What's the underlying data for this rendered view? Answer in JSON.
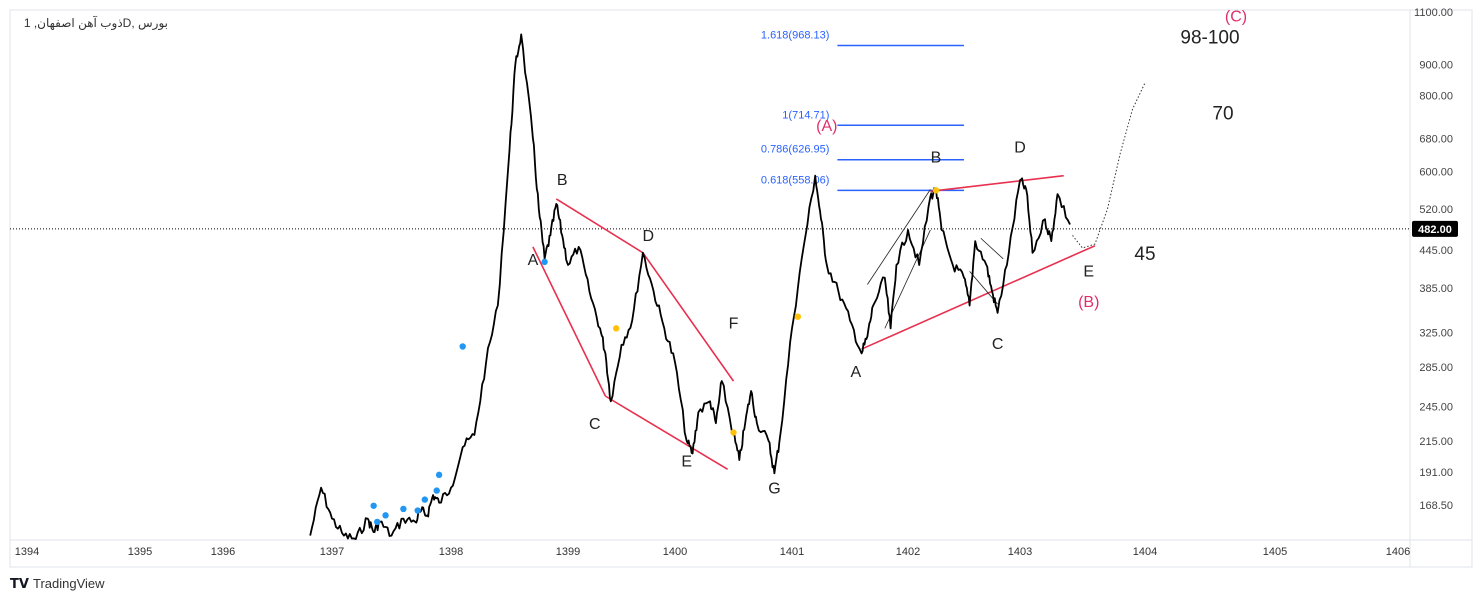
{
  "header": {
    "title": "ذوب آهن اصفهان, 1D, بورس"
  },
  "footer": {
    "logo_text": "TradingView"
  },
  "colors": {
    "price": "#000000",
    "fib": "#2962ff",
    "channel": "#e8314f",
    "pink": "#e0306a",
    "marker_blue": "#2196f3",
    "marker_yellow": "#ffc107"
  },
  "chart_data": {
    "type": "line",
    "title": "ذوب آهن اصفهان, 1D, بورس",
    "y_scale": "log",
    "xlabel": "",
    "ylabel": "",
    "ylim": [
      140,
      1100
    ],
    "x_ticks": [
      "1394",
      "1395",
      "1396",
      "1397",
      "1398",
      "1399",
      "1400",
      "1401",
      "1402",
      "1403",
      "1404",
      "1405",
      "1406"
    ],
    "y_ticks": [
      "1100.00",
      "900.00",
      "800.00",
      "680.00",
      "600.00",
      "520.00",
      "445.00",
      "385.00",
      "325.00",
      "285.00",
      "245.00",
      "215.00",
      "191.00",
      "168.50"
    ],
    "current_price": "482.00",
    "current_value": 482,
    "grid": false,
    "series": [
      {
        "x": [
          1396.8,
          1396.9,
          1397.0,
          1397.1,
          1397.2,
          1397.3,
          1397.35,
          1397.4,
          1397.5,
          1397.6,
          1397.7,
          1397.75,
          1397.8,
          1397.85,
          1397.9,
          1398.0,
          1398.1,
          1398.2,
          1398.3,
          1398.4,
          1398.5,
          1398.55,
          1398.6,
          1398.7,
          1398.75,
          1398.8,
          1398.85,
          1398.9,
          1398.95,
          1399.0,
          1399.1,
          1399.2,
          1399.3,
          1399.35,
          1399.4,
          1399.5,
          1399.6,
          1399.7,
          1399.8,
          1399.9,
          1400.0,
          1400.1,
          1400.15,
          1400.2,
          1400.3,
          1400.35,
          1400.4,
          1400.5,
          1400.55,
          1400.6,
          1400.65,
          1400.7,
          1400.8,
          1400.85,
          1400.9,
          1401.0,
          1401.1,
          1401.2,
          1401.25,
          1401.3,
          1401.4,
          1401.5,
          1401.6,
          1401.65,
          1401.7,
          1401.8,
          1401.85,
          1401.9,
          1402.0,
          1402.1,
          1402.2,
          1402.25,
          1402.3,
          1402.4,
          1402.5,
          1402.55,
          1402.6,
          1402.7,
          1402.75,
          1402.8,
          1402.9,
          1403.0,
          1403.05,
          1403.1,
          1403.2,
          1403.25,
          1403.3,
          1403.4
        ],
        "y": [
          150,
          180,
          160,
          150,
          148,
          160,
          152,
          158,
          150,
          160,
          158,
          165,
          162,
          175,
          170,
          180,
          210,
          220,
          290,
          360,
          650,
          900,
          1010,
          680,
          520,
          430,
          470,
          530,
          470,
          420,
          450,
          380,
          330,
          300,
          250,
          310,
          340,
          440,
          380,
          330,
          290,
          215,
          205,
          240,
          250,
          230,
          270,
          220,
          200,
          230,
          260,
          230,
          215,
          190,
          220,
          330,
          450,
          590,
          500,
          420,
          380,
          340,
          300,
          320,
          360,
          400,
          330,
          420,
          480,
          420,
          545,
          560,
          480,
          420,
          400,
          360,
          460,
          420,
          380,
          350,
          440,
          580,
          560,
          440,
          500,
          460,
          550,
          490
        ]
      }
    ],
    "projection": {
      "x": [
        1403.42,
        1403.5,
        1403.6,
        1403.7,
        1403.8,
        1403.9,
        1404.0
      ],
      "y": [
        470,
        448,
        455,
        520,
        640,
        760,
        840
      ]
    },
    "fib_levels": [
      {
        "label": "1.618(968.13)",
        "value": 968.13,
        "x": [
          1401.15,
          1402.25
        ]
      },
      {
        "label": "1(714.71)",
        "value": 714.71,
        "x": [
          1401.15,
          1402.25
        ]
      },
      {
        "label": "0.786(626.95)",
        "value": 626.95,
        "x": [
          1401.15,
          1402.25
        ]
      },
      {
        "label": "0.618(558.06)",
        "value": 558.06,
        "x": [
          1401.15,
          1402.25
        ]
      }
    ],
    "channel_lines": [
      {
        "x": [
          1398.7,
          1399.35
        ],
        "y": [
          450,
          255
        ]
      },
      {
        "x": [
          1398.9,
          1399.7
        ],
        "y": [
          540,
          440
        ]
      },
      {
        "x": [
          1399.7,
          1400.5
        ],
        "y": [
          440,
          270
        ]
      },
      {
        "x": [
          1399.35,
          1400.45
        ],
        "y": [
          255,
          193
        ]
      },
      {
        "x": [
          1401.6,
          1403.6
        ],
        "y": [
          305,
          452
        ]
      },
      {
        "x": [
          1402.2,
          1403.35
        ],
        "y": [
          556,
          590
        ]
      }
    ],
    "thin_lines": [
      {
        "x": [
          1401.65,
          1402.2
        ],
        "y": [
          390,
          560
        ]
      },
      {
        "x": [
          1401.8,
          1402.2
        ],
        "y": [
          330,
          480
        ]
      },
      {
        "x": [
          1402.55,
          1402.8
        ],
        "y": [
          410,
          362
        ]
      },
      {
        "x": [
          1402.65,
          1402.85
        ],
        "y": [
          465,
          430
        ]
      }
    ],
    "markers_blue": [
      {
        "x": 1397.35,
        "y": 168
      },
      {
        "x": 1397.38,
        "y": 158
      },
      {
        "x": 1397.45,
        "y": 162
      },
      {
        "x": 1397.6,
        "y": 166
      },
      {
        "x": 1397.72,
        "y": 165
      },
      {
        "x": 1397.78,
        "y": 172
      },
      {
        "x": 1397.88,
        "y": 178
      },
      {
        "x": 1397.9,
        "y": 189
      },
      {
        "x": 1398.1,
        "y": 308
      },
      {
        "x": 1398.8,
        "y": 425
      }
    ],
    "markers_yellow": [
      {
        "x": 1399.45,
        "y": 330
      },
      {
        "x": 1400.5,
        "y": 222
      },
      {
        "x": 1401.05,
        "y": 345
      },
      {
        "x": 1402.25,
        "y": 558
      }
    ],
    "wave_labels": [
      {
        "text": "A",
        "x": 1398.7,
        "y": 420,
        "color": "dark"
      },
      {
        "text": "B",
        "x": 1398.95,
        "y": 570,
        "color": "dark"
      },
      {
        "text": "C",
        "x": 1399.25,
        "y": 225,
        "color": "dark"
      },
      {
        "text": "D",
        "x": 1399.75,
        "y": 460,
        "color": "dark"
      },
      {
        "text": "E",
        "x": 1400.1,
        "y": 195,
        "color": "dark"
      },
      {
        "text": "F",
        "x": 1400.5,
        "y": 330,
        "color": "dark"
      },
      {
        "text": "G",
        "x": 1400.85,
        "y": 176,
        "color": "dark"
      },
      {
        "text": "A",
        "x": 1401.55,
        "y": 274,
        "color": "dark"
      },
      {
        "text": "B",
        "x": 1402.25,
        "y": 620,
        "color": "dark"
      },
      {
        "text": "C",
        "x": 1402.8,
        "y": 305,
        "color": "dark"
      },
      {
        "text": "D",
        "x": 1403.0,
        "y": 645,
        "color": "dark"
      },
      {
        "text": "E",
        "x": 1403.55,
        "y": 402,
        "color": "dark"
      },
      {
        "text": "(A)",
        "x": 1401.3,
        "y": 700,
        "color": "pink"
      },
      {
        "text": "(B)",
        "x": 1403.55,
        "y": 358,
        "color": "pink"
      },
      {
        "text": "(C)",
        "x": 1404.7,
        "y": 1060,
        "color": "pink"
      }
    ],
    "price_targets": [
      {
        "text": "98-100",
        "x": 1404.5,
        "y": 975
      },
      {
        "text": "70",
        "x": 1404.6,
        "y": 730
      },
      {
        "text": "45",
        "x": 1404.0,
        "y": 428
      }
    ]
  }
}
